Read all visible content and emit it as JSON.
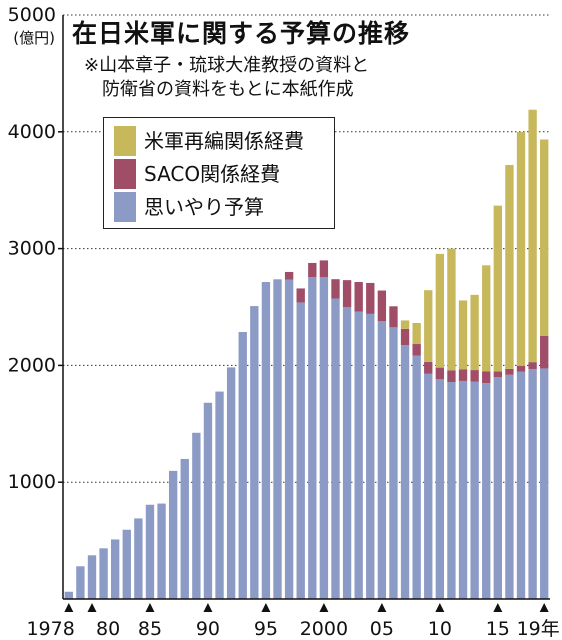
{
  "chart_data": {
    "type": "bar",
    "stacked": true,
    "title": "在日米軍に関する予算の推移",
    "source_note_lines": [
      "※山本章子・琉球大准教授の資料と",
      "防衛省の資料をもとに本紙作成"
    ],
    "ylabel_top": "5000",
    "ylabel_unit": "(億円)",
    "ylim": [
      0,
      5000
    ],
    "yticks": [
      "1000",
      "2000",
      "3000",
      "4000"
    ],
    "grid": "dotted horizontal",
    "legend_position": "top-left",
    "x_tick_labels": [
      "1978",
      "80",
      "85",
      "90",
      "95",
      "2000",
      "05",
      "10",
      "15",
      "19年"
    ],
    "x_tick_years": [
      1978,
      1980,
      1985,
      1990,
      1995,
      2000,
      2005,
      2010,
      2015,
      2019
    ],
    "x": [
      1978,
      1979,
      1980,
      1981,
      1982,
      1983,
      1984,
      1985,
      1986,
      1987,
      1988,
      1989,
      1990,
      1991,
      1992,
      1993,
      1994,
      1995,
      1996,
      1997,
      1998,
      1999,
      2000,
      2001,
      2002,
      2003,
      2004,
      2005,
      2006,
      2007,
      2008,
      2009,
      2010,
      2011,
      2012,
      2013,
      2014,
      2015,
      2016,
      2017,
      2018,
      2019
    ],
    "series": [
      {
        "name": "思いやり予算",
        "color": "#8b9bc6",
        "values": [
          62,
          280,
          374,
          434,
          510,
          593,
          690,
          807,
          817,
          1097,
          1199,
          1423,
          1680,
          1776,
          1983,
          2286,
          2508,
          2714,
          2737,
          2735,
          2539,
          2756,
          2755,
          2573,
          2500,
          2460,
          2441,
          2378,
          2326,
          2173,
          2083,
          1928,
          1881,
          1858,
          1867,
          1860,
          1848,
          1899,
          1920,
          1946,
          1968,
          1974
        ]
      },
      {
        "name": "SACO関係経費",
        "color": "#a04d68",
        "values": [
          0,
          0,
          0,
          0,
          0,
          0,
          0,
          0,
          0,
          0,
          0,
          0,
          0,
          0,
          0,
          0,
          0,
          0,
          0,
          65,
          120,
          121,
          144,
          165,
          230,
          254,
          265,
          263,
          180,
          140,
          100,
          102,
          100,
          100,
          100,
          100,
          100,
          50,
          50,
          50,
          60,
          280
        ]
      },
      {
        "name": "米軍再編関係経費",
        "color": "#c8b85c",
        "values": [
          0,
          0,
          0,
          0,
          0,
          0,
          0,
          0,
          0,
          0,
          0,
          0,
          0,
          0,
          0,
          0,
          0,
          0,
          0,
          0,
          0,
          0,
          0,
          0,
          0,
          0,
          0,
          0,
          0,
          72,
          180,
          614,
          974,
          1042,
          589,
          644,
          909,
          1419,
          1746,
          2002,
          2161,
          1680
        ]
      }
    ]
  }
}
